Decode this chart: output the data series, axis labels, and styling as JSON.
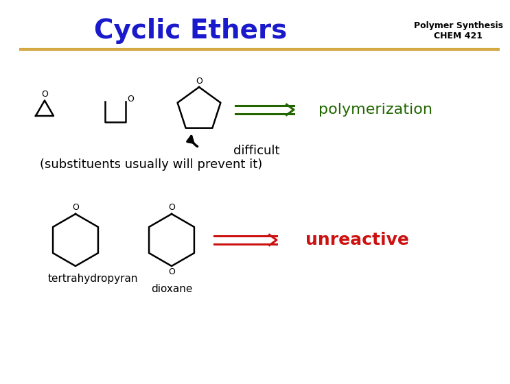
{
  "title": "Cyclic Ethers",
  "title_color": "#1a1aCC",
  "title_fontsize": 28,
  "subtitle": "Polymer Synthesis\nCHEM 421",
  "subtitle_color": "#000000",
  "subtitle_fontsize": 9,
  "bg_color": "#FFFFFF",
  "divider_color": "#D4A843",
  "polymerization_text": "polymerization",
  "polymerization_color": "#226600",
  "polymerization_fontsize": 16,
  "difficult_line1": "difficult",
  "difficult_line2": "(substituents usually will prevent it)",
  "difficult_color": "#000000",
  "difficult_fontsize": 13,
  "unreactive_text": "unreactive",
  "unreactive_color": "#CC1111",
  "unreactive_fontsize": 18,
  "label_thp": "tertrahydropyran",
  "label_dioxane": "dioxane",
  "label_fontsize": 11,
  "mol_lw": 1.8,
  "arrow_lw": 2.2
}
